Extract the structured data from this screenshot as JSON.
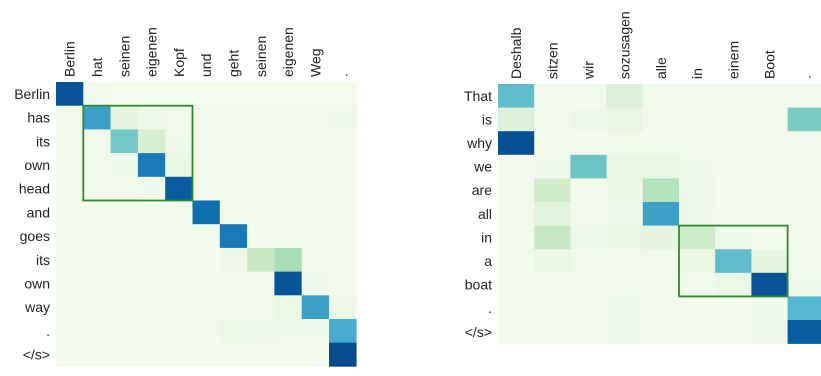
{
  "chart_data": [
    {
      "type": "heatmap",
      "title": "",
      "xlabel": "",
      "ylabel": "",
      "x_tokens": [
        "Berlin",
        "hat",
        "seinen",
        "eigenen",
        "Kopf",
        "und",
        "geht",
        "seinen",
        "eigenen",
        "Weg",
        "."
      ],
      "y_tokens": [
        "Berlin",
        "has",
        "its",
        "own",
        "head",
        "and",
        "goes",
        "its",
        "own",
        "way",
        ".",
        "</s>"
      ],
      "values": [
        [
          0.95,
          0.03,
          0.02,
          0.02,
          0.02,
          0.02,
          0.02,
          0.02,
          0.02,
          0.02,
          0.02
        ],
        [
          0.03,
          0.75,
          0.12,
          0.06,
          0.04,
          0.03,
          0.03,
          0.03,
          0.03,
          0.04,
          0.05
        ],
        [
          0.03,
          0.04,
          0.6,
          0.22,
          0.05,
          0.03,
          0.03,
          0.03,
          0.03,
          0.03,
          0.03
        ],
        [
          0.03,
          0.03,
          0.05,
          0.85,
          0.08,
          0.03,
          0.03,
          0.03,
          0.03,
          0.03,
          0.03
        ],
        [
          0.03,
          0.03,
          0.03,
          0.05,
          0.93,
          0.03,
          0.03,
          0.03,
          0.03,
          0.03,
          0.03
        ],
        [
          0.03,
          0.04,
          0.04,
          0.04,
          0.04,
          0.88,
          0.04,
          0.03,
          0.03,
          0.03,
          0.03
        ],
        [
          0.03,
          0.03,
          0.03,
          0.03,
          0.03,
          0.04,
          0.85,
          0.04,
          0.04,
          0.03,
          0.03
        ],
        [
          0.03,
          0.03,
          0.03,
          0.03,
          0.03,
          0.03,
          0.06,
          0.32,
          0.45,
          0.04,
          0.03
        ],
        [
          0.03,
          0.03,
          0.03,
          0.03,
          0.03,
          0.03,
          0.03,
          0.04,
          0.95,
          0.05,
          0.03
        ],
        [
          0.03,
          0.03,
          0.03,
          0.03,
          0.03,
          0.03,
          0.03,
          0.04,
          0.07,
          0.75,
          0.06
        ],
        [
          0.03,
          0.03,
          0.03,
          0.03,
          0.03,
          0.03,
          0.07,
          0.06,
          0.05,
          0.05,
          0.72
        ],
        [
          0.03,
          0.03,
          0.03,
          0.03,
          0.03,
          0.03,
          0.03,
          0.03,
          0.03,
          0.03,
          0.97
        ]
      ],
      "vrange": [
        0,
        1
      ],
      "highlight_box": {
        "cols": [
          1,
          4
        ],
        "rows": [
          1,
          4
        ],
        "color": "#2e8b2e"
      },
      "grid": false,
      "colormap": "GnBu"
    },
    {
      "type": "heatmap",
      "title": "",
      "xlabel": "",
      "ylabel": "",
      "x_tokens": [
        "Deshalb",
        "sitzen",
        "wir",
        "sozusagen",
        "alle",
        "in",
        "einem",
        "Boot",
        "."
      ],
      "y_tokens": [
        "That",
        "is",
        "why",
        "we",
        "are",
        "all",
        "in",
        "a",
        "boat",
        ".",
        "</s>"
      ],
      "values": [
        [
          0.65,
          0.03,
          0.03,
          0.18,
          0.03,
          0.03,
          0.03,
          0.03,
          0.03
        ],
        [
          0.18,
          0.03,
          0.06,
          0.1,
          0.03,
          0.03,
          0.03,
          0.03,
          0.58
        ],
        [
          0.96,
          0.03,
          0.03,
          0.03,
          0.03,
          0.03,
          0.03,
          0.03,
          0.04
        ],
        [
          0.03,
          0.05,
          0.62,
          0.1,
          0.1,
          0.05,
          0.03,
          0.03,
          0.03
        ],
        [
          0.03,
          0.28,
          0.04,
          0.08,
          0.4,
          0.06,
          0.03,
          0.03,
          0.03
        ],
        [
          0.03,
          0.14,
          0.04,
          0.06,
          0.75,
          0.05,
          0.03,
          0.03,
          0.03
        ],
        [
          0.03,
          0.33,
          0.06,
          0.1,
          0.12,
          0.27,
          0.05,
          0.03,
          0.03
        ],
        [
          0.03,
          0.08,
          0.04,
          0.04,
          0.04,
          0.1,
          0.65,
          0.12,
          0.03
        ],
        [
          0.03,
          0.04,
          0.03,
          0.03,
          0.03,
          0.04,
          0.07,
          0.95,
          0.05
        ],
        [
          0.03,
          0.03,
          0.03,
          0.05,
          0.03,
          0.03,
          0.03,
          0.05,
          0.68
        ],
        [
          0.03,
          0.03,
          0.03,
          0.05,
          0.03,
          0.03,
          0.03,
          0.06,
          0.93
        ]
      ],
      "vrange": [
        0,
        1
      ],
      "highlight_box": {
        "cols": [
          5,
          7
        ],
        "rows": [
          6,
          8
        ],
        "color": "#2e8b2e"
      },
      "grid": false,
      "colormap": "GnBu"
    }
  ]
}
